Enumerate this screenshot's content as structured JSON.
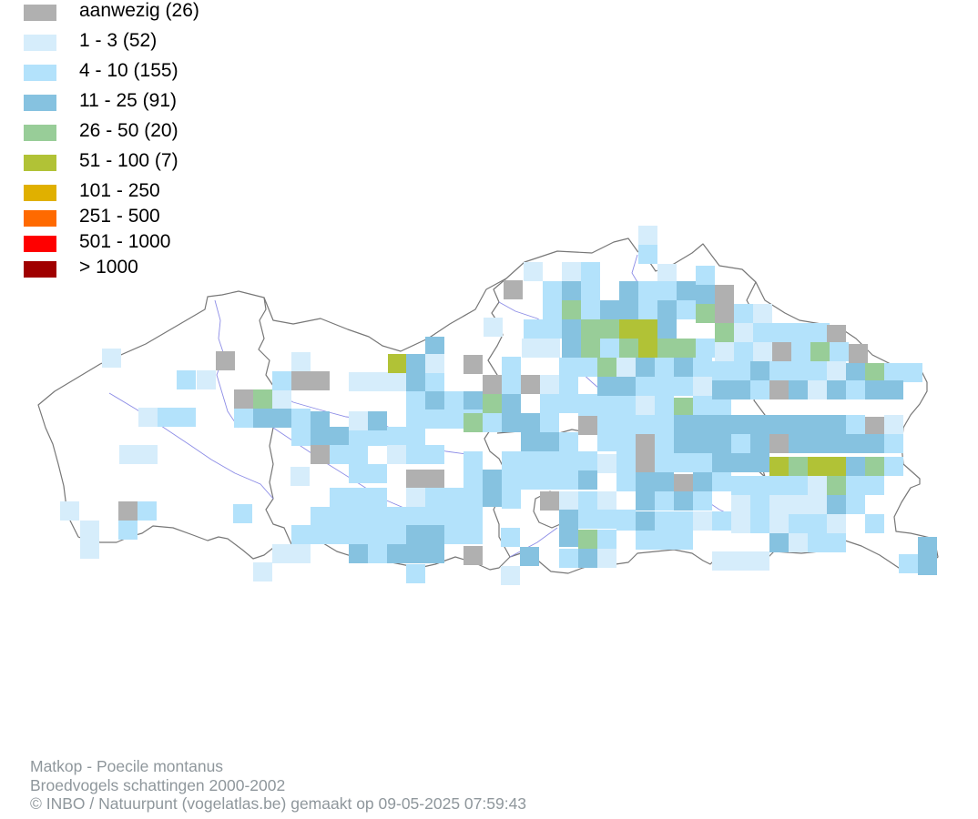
{
  "legend": [
    {
      "label": "aanwezig (26)",
      "color": "#b0b0b0"
    },
    {
      "label": "1 - 3 (52)",
      "color": "#d6edfb"
    },
    {
      "label": "4 - 10 (155)",
      "color": "#b3e2fb"
    },
    {
      "label": "11 - 25 (91)",
      "color": "#86c2e0"
    },
    {
      "label": "26 - 50 (20)",
      "color": "#98cd98"
    },
    {
      "label": "51 - 100 (7)",
      "color": "#b1c236"
    },
    {
      "label": "101 - 250",
      "color": "#e0b000"
    },
    {
      "label": "251 - 500",
      "color": "#ff6a00"
    },
    {
      "label": "501 - 1000",
      "color": "#ff0000"
    },
    {
      "label": "> 1000",
      "color": "#a00000"
    }
  ],
  "credits": {
    "line1": "Matkop - Poecile montanus",
    "line2": "Broedvogels schattingen 2000-2002",
    "line3": "© INBO / Natuurpunt (vogelatlas.be) gemaakt op 09-05-2025 07:59:43"
  },
  "colors": {
    "boundary": "#777777",
    "river": "#8c8ce6"
  }
}
